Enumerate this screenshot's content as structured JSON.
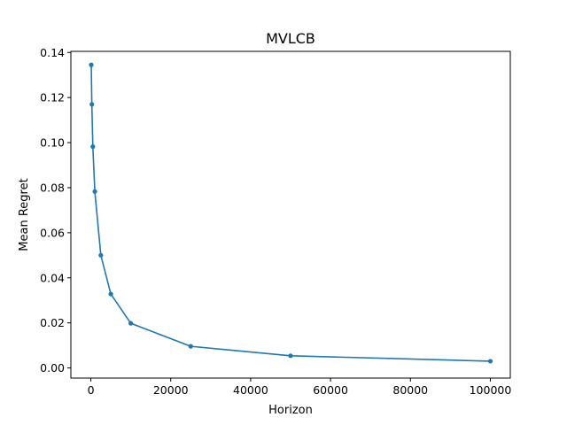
{
  "chart_data": {
    "type": "line",
    "title": "MVLCB",
    "xlabel": "Horizon",
    "ylabel": "Mean Regret",
    "xlim": [
      -5000,
      105000
    ],
    "ylim": [
      -0.0045,
      0.1405
    ],
    "x_ticks": [
      0,
      20000,
      40000,
      60000,
      80000,
      100000
    ],
    "x_tick_labels": [
      "0",
      "20000",
      "40000",
      "60000",
      "80000",
      "100000"
    ],
    "y_ticks": [
      0.0,
      0.02,
      0.04,
      0.06,
      0.08,
      0.1,
      0.12,
      0.14
    ],
    "y_tick_labels": [
      "0.00",
      "0.02",
      "0.04",
      "0.06",
      "0.08",
      "0.10",
      "0.12",
      "0.14"
    ],
    "grid": false,
    "series": [
      {
        "color": "#1f77b4",
        "marker": "circle",
        "x": [
          100,
          250,
          500,
          1000,
          2500,
          5000,
          10000,
          25000,
          50000,
          100000
        ],
        "y": [
          0.1345,
          0.117,
          0.0982,
          0.0783,
          0.05,
          0.0328,
          0.0198,
          0.0096,
          0.0054,
          0.003
        ]
      }
    ]
  }
}
